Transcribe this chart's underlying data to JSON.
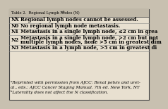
{
  "title": "Table 2.  Regional Lymph Nodes (N)",
  "title_superscript": "a,b",
  "outer_bg": "#c8c0b0",
  "table_bg": "#e8e0d0",
  "header_bg": "#c0b8a8",
  "border_color": "#444444",
  "line_color": "#888888",
  "rows": [
    {
      "code": "NX",
      "text": "Regional lymph nodes cannot be assessed.",
      "multiline": false
    },
    {
      "code": "N0",
      "text": "No regional lymph node metastasis.",
      "multiline": false
    },
    {
      "code": "N1",
      "text": "Metastasis in a single lymph node, ≤2 cm in grea",
      "multiline": false
    },
    {
      "code": "N2",
      "text": "Metastasis in a single lymph node, >2 cm but not",
      "text2": "multiple lymph nodes, none >5 cm in greatest dim",
      "multiline": true
    },
    {
      "code": "N3",
      "text": "Metastasis in a lymph node, >5 cm in greatest di",
      "multiline": false
    }
  ],
  "footnote_a_lines": [
    "Reprinted with permission from AJCC: Renal pelvis and uret-",
    "al., eds.: AJCC Cancer Staging Manual. 7th ed. New York, NY"
  ],
  "footnote_b": "Laterality does not affect the N classification.",
  "title_fontsize": 3.8,
  "code_fontsize": 5.0,
  "text_fontsize": 5.0,
  "footnote_fontsize": 4.2
}
